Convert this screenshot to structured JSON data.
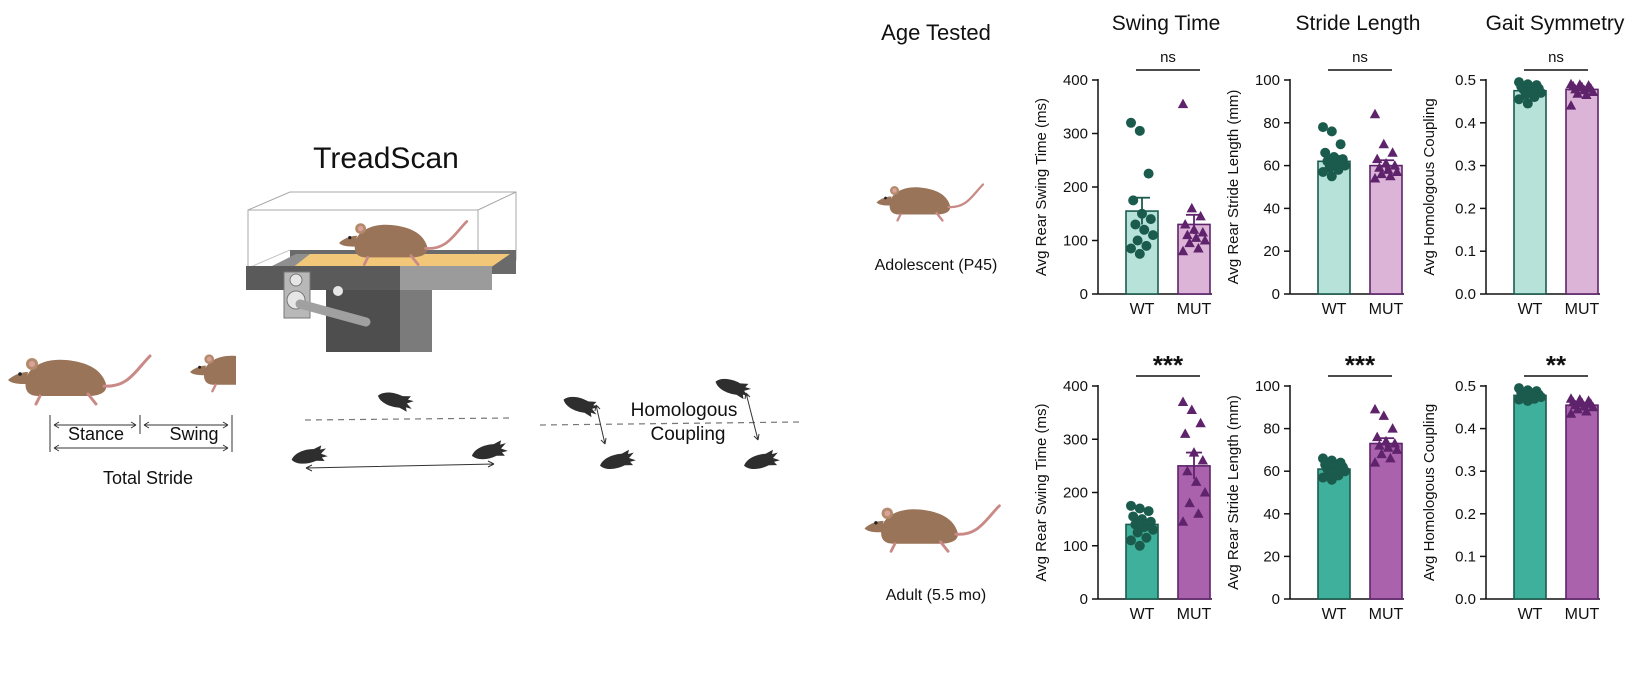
{
  "left_panel": {
    "title": "TreadScan",
    "stride_labels": {
      "stance": "Stance",
      "swing": "Swing",
      "total": "Total Stride"
    },
    "coupling_label_line1": "Homologous",
    "coupling_label_line2": "Coupling",
    "colors": {
      "mouse_fur": "#9a7458",
      "mouse_tail": "#c98a86",
      "belt": "#f2c77a",
      "machine": "#5a5a5a",
      "paw": "#2e2e2e"
    }
  },
  "rows": {
    "header": "Age Tested",
    "adolescent_label": "Adolescent (P45)",
    "adult_label": "Adult (5.5 mo)"
  },
  "columns": [
    "Swing Time",
    "Stride Length",
    "Gait Symmetry"
  ],
  "colors": {
    "wt_light": "#b6e2da",
    "mut_light": "#dcb4d8",
    "wt_dark": "#3fb09b",
    "mut_dark": "#aa62ad",
    "wt_edge": "#1b5b4e",
    "mut_edge": "#5e236b"
  },
  "chart_data": [
    {
      "type": "bar",
      "title": "Swing Time",
      "row": "Adolescent (P45)",
      "categories": [
        "WT",
        "MUT"
      ],
      "ylabel": "Avg Rear Swing Time (ms)",
      "ylim": [
        0,
        400
      ],
      "yticks": [
        0,
        100,
        200,
        300,
        400
      ],
      "series": [
        {
          "name": "WT",
          "mean": 155,
          "sem": 25,
          "points": [
            320,
            305,
            225,
            175,
            150,
            140,
            130,
            120,
            110,
            100,
            90,
            85,
            75
          ]
        },
        {
          "name": "MUT",
          "mean": 130,
          "sem": 18,
          "points": [
            355,
            160,
            145,
            130,
            120,
            115,
            110,
            105,
            100,
            95,
            85,
            80
          ]
        }
      ],
      "significance": "ns"
    },
    {
      "type": "bar",
      "title": "Stride Length",
      "row": "Adolescent (P45)",
      "categories": [
        "WT",
        "MUT"
      ],
      "ylabel": "Avg Rear Stride Length (mm)",
      "ylim": [
        0,
        100
      ],
      "yticks": [
        0,
        20,
        40,
        60,
        80,
        100
      ],
      "series": [
        {
          "name": "WT",
          "mean": 62,
          "sem": 2.5,
          "points": [
            78,
            76,
            70,
            66,
            64,
            63,
            62,
            61,
            60,
            59,
            58,
            57,
            55
          ]
        },
        {
          "name": "MUT",
          "mean": 60,
          "sem": 2.5,
          "points": [
            84,
            70,
            66,
            63,
            61,
            60,
            59,
            58,
            57,
            56,
            55,
            54
          ]
        }
      ],
      "significance": "ns"
    },
    {
      "type": "bar",
      "title": "Gait Symmetry",
      "row": "Adolescent (P45)",
      "categories": [
        "WT",
        "MUT"
      ],
      "ylabel": "Avg Homologous Coupling",
      "ylim": [
        0,
        0.5
      ],
      "yticks": [
        0.0,
        0.1,
        0.2,
        0.3,
        0.4,
        0.5
      ],
      "series": [
        {
          "name": "WT",
          "mean": 0.475,
          "sem": 0.006,
          "points": [
            0.495,
            0.49,
            0.488,
            0.485,
            0.482,
            0.48,
            0.478,
            0.475,
            0.47,
            0.465,
            0.46,
            0.455,
            0.445
          ]
        },
        {
          "name": "MUT",
          "mean": 0.478,
          "sem": 0.005,
          "points": [
            0.49,
            0.489,
            0.487,
            0.485,
            0.483,
            0.48,
            0.478,
            0.476,
            0.472,
            0.468,
            0.465,
            0.44
          ]
        }
      ],
      "significance": "ns"
    },
    {
      "type": "bar",
      "title": "Swing Time",
      "row": "Adult (5.5 mo)",
      "categories": [
        "WT",
        "MUT"
      ],
      "ylabel": "Avg Rear Swing Time (ms)",
      "ylim": [
        0,
        400
      ],
      "yticks": [
        0,
        100,
        200,
        300,
        400
      ],
      "series": [
        {
          "name": "WT",
          "mean": 140,
          "sem": 8,
          "points": [
            175,
            170,
            165,
            155,
            150,
            145,
            140,
            135,
            130,
            125,
            115,
            110,
            100
          ]
        },
        {
          "name": "MUT",
          "mean": 250,
          "sem": 25,
          "points": [
            370,
            355,
            330,
            310,
            275,
            260,
            240,
            220,
            200,
            180,
            160,
            145
          ]
        }
      ],
      "significance": "***"
    },
    {
      "type": "bar",
      "title": "Stride Length",
      "row": "Adult (5.5 mo)",
      "categories": [
        "WT",
        "MUT"
      ],
      "ylabel": "Avg Rear Stride Length (mm)",
      "ylim": [
        0,
        100
      ],
      "yticks": [
        0,
        20,
        40,
        60,
        80,
        100
      ],
      "series": [
        {
          "name": "WT",
          "mean": 61,
          "sem": 1,
          "points": [
            66,
            65,
            64,
            63,
            62,
            62,
            61,
            60,
            60,
            59,
            58,
            57,
            56
          ]
        },
        {
          "name": "MUT",
          "mean": 73,
          "sem": 2.5,
          "points": [
            89,
            86,
            80,
            76,
            74,
            73,
            72,
            71,
            70,
            68,
            66,
            64
          ]
        }
      ],
      "significance": "***"
    },
    {
      "type": "bar",
      "title": "Gait Symmetry",
      "row": "Adult (5.5 mo)",
      "categories": [
        "WT",
        "MUT"
      ],
      "ylabel": "Avg Homologous Coupling",
      "ylim": [
        0,
        0.5
      ],
      "yticks": [
        0.0,
        0.1,
        0.2,
        0.3,
        0.4,
        0.5
      ],
      "series": [
        {
          "name": "WT",
          "mean": 0.478,
          "sem": 0.004,
          "points": [
            0.495,
            0.49,
            0.488,
            0.485,
            0.483,
            0.48,
            0.478,
            0.476,
            0.474,
            0.472,
            0.47,
            0.468,
            0.465
          ]
        },
        {
          "name": "MUT",
          "mean": 0.455,
          "sem": 0.004,
          "points": [
            0.47,
            0.468,
            0.465,
            0.462,
            0.46,
            0.458,
            0.455,
            0.452,
            0.45,
            0.445,
            0.44,
            0.435
          ]
        }
      ],
      "significance": "**"
    }
  ]
}
